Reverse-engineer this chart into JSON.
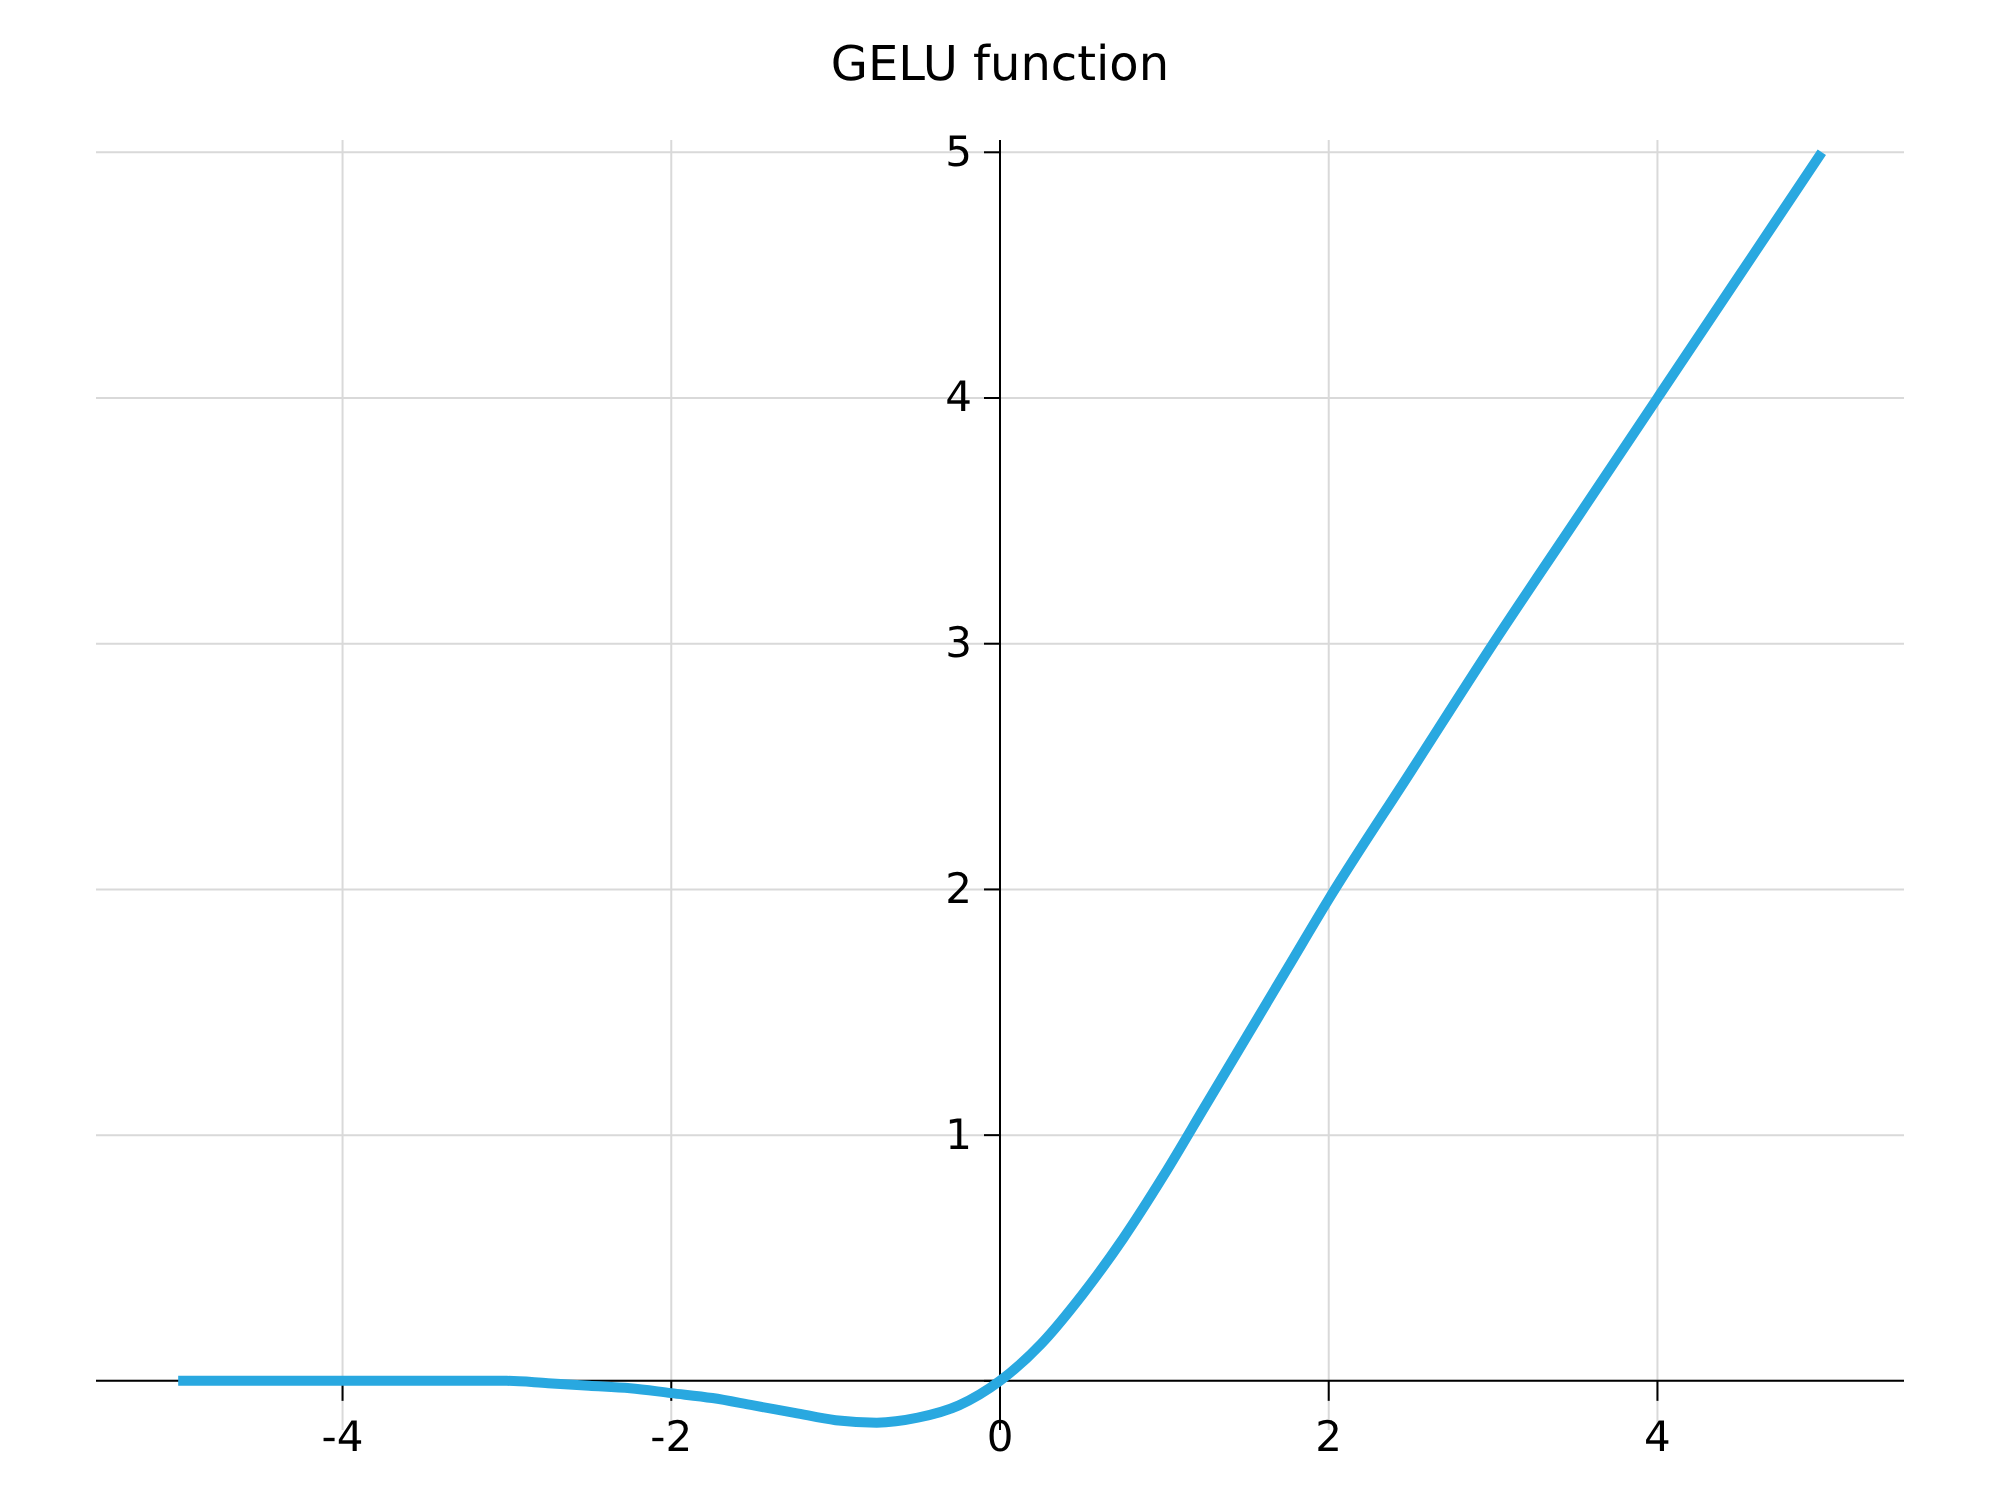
{
  "chart_data": {
    "type": "line",
    "title": "GELU function",
    "x": [
      -5,
      -4.5,
      -4,
      -3.5,
      -3,
      -2.75,
      -2.5,
      -2.25,
      -2,
      -1.75,
      -1.5,
      -1.25,
      -1,
      -0.75,
      -0.5,
      -0.25,
      0,
      0.25,
      0.5,
      0.75,
      1,
      1.25,
      1.5,
      1.75,
      2,
      2.5,
      3,
      3.5,
      4,
      4.5,
      5
    ],
    "series": [
      {
        "color": "#29a8e0",
        "values": [
          0,
          0,
          0,
          0,
          0,
          -0.01,
          -0.02,
          -0.03,
          -0.05,
          -0.07,
          -0.1,
          -0.13,
          -0.16,
          -0.17,
          -0.15,
          -0.1,
          0,
          0.15,
          0.35,
          0.58,
          0.84,
          1.12,
          1.4,
          1.68,
          1.96,
          2.48,
          3,
          3.5,
          4,
          4.5,
          5
        ]
      }
    ],
    "xlim": [
      -5.5,
      5.5
    ],
    "ylim": [
      -0.2,
      5.05
    ],
    "xticks": [
      -4,
      -2,
      0,
      2,
      4
    ],
    "yticks": [
      {
        "value": 0,
        "label": null
      },
      1,
      2,
      3,
      4,
      5
    ],
    "grid": true,
    "marker": "none",
    "line_style": "solid"
  }
}
